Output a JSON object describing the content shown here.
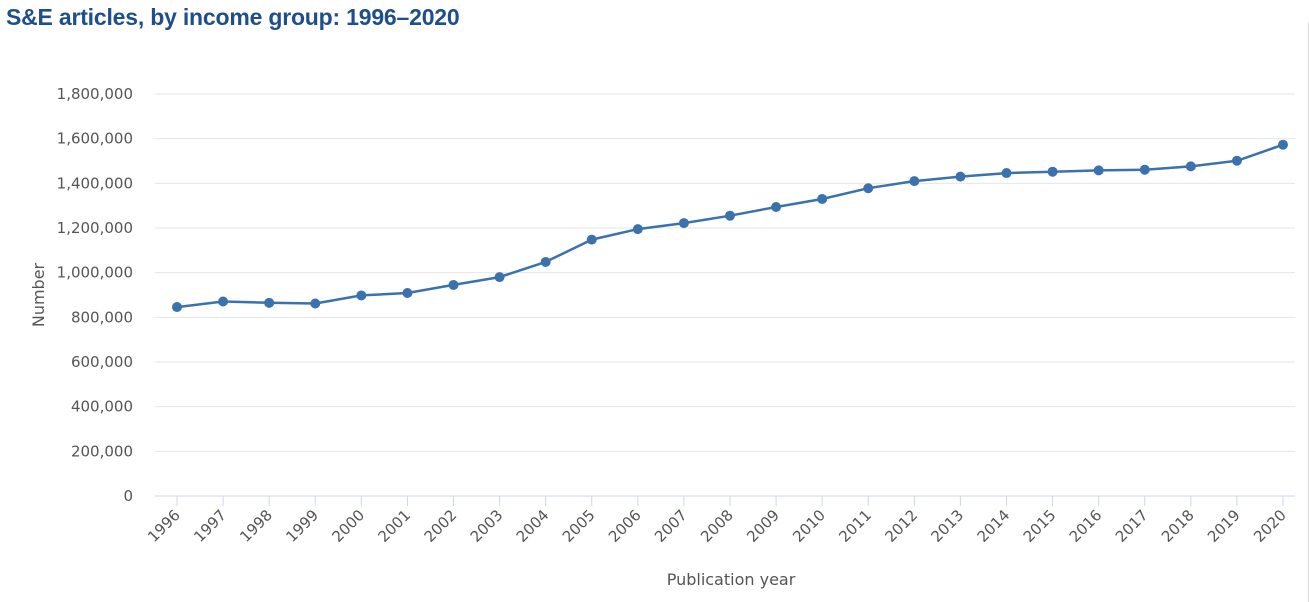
{
  "title": "S&E articles, by income group: 1996–2020",
  "chart_data": {
    "type": "line",
    "title": "S&E articles, by income group: 1996–2020",
    "xlabel": "Publication year",
    "ylabel": "Number",
    "categories": [
      "1996",
      "1997",
      "1998",
      "1999",
      "2000",
      "2001",
      "2002",
      "2003",
      "2004",
      "2005",
      "2006",
      "2007",
      "2008",
      "2009",
      "2010",
      "2011",
      "2012",
      "2013",
      "2014",
      "2015",
      "2016",
      "2017",
      "2018",
      "2019",
      "2020"
    ],
    "series": [
      {
        "values": [
          846000,
          871000,
          865000,
          862000,
          898000,
          909000,
          945000,
          980000,
          1048000,
          1148000,
          1195000,
          1222000,
          1255000,
          1294000,
          1330000,
          1378000,
          1410000,
          1430000,
          1446000,
          1452000,
          1458000,
          1461000,
          1476000,
          1501000,
          1573000
        ]
      }
    ],
    "ylim": [
      0,
      1800000
    ],
    "yticks": [
      0,
      200000,
      400000,
      600000,
      800000,
      1000000,
      1200000,
      1400000,
      1600000,
      1800000
    ],
    "ytick_labels": [
      "0",
      "200,000",
      "400,000",
      "600,000",
      "800,000",
      "1,000,000",
      "1,200,000",
      "1,400,000",
      "1,600,000",
      "1,800,000"
    ],
    "grid": true,
    "colors": {
      "line": "#3b72ad",
      "grid": "#e6e6e6",
      "axis": "#ccd6eb",
      "title": "#1f4e8c",
      "text": "#555555"
    }
  }
}
